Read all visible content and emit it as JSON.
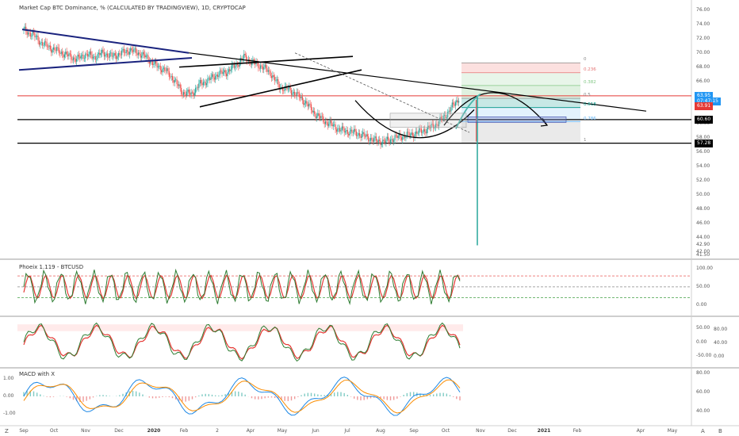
{
  "chart_data": [
    {
      "type": "candlestick",
      "title": "Market Cap BTC Dominance, % (CALCULATED BY TRADINGVIEW), 1D, CRYPTOCAP",
      "ylim": [
        41.5,
        77.0
      ],
      "y_ticks": [
        "76.00",
        "74.00",
        "72.00",
        "70.00",
        "68.00",
        "66.00",
        "64.00",
        "62.00",
        "60.00",
        "58.00",
        "56.00",
        "54.00",
        "52.00",
        "50.00",
        "48.00",
        "46.00",
        "44.00",
        "42.00",
        "41.50"
      ],
      "y_tick_values": [
        76,
        74,
        72,
        70,
        68,
        66,
        64,
        62,
        60,
        58,
        56,
        54,
        52,
        50,
        48,
        46,
        44,
        42,
        41.5
      ],
      "price_tags": [
        {
          "label": "63.95",
          "value": 63.95,
          "color": "#2196f3"
        },
        {
          "label": "07:47:15",
          "value": 63.2,
          "color": "#2196f3"
        },
        {
          "label": "63.91",
          "value": 62.5,
          "color": "#e53935"
        },
        {
          "label": "60.60",
          "value": 60.6,
          "color": "#000000"
        },
        {
          "label": "57.28",
          "value": 57.28,
          "color": "#000000"
        }
      ],
      "horizontal_lines": [
        63.95,
        60.6,
        57.28
      ],
      "fib_levels": [
        {
          "label": "0",
          "value": 68.6,
          "color": "#888888"
        },
        {
          "label": "0.236",
          "value": 67.2,
          "color": "#e57373"
        },
        {
          "label": "0.382",
          "value": 65.4,
          "color": "#81c784"
        },
        {
          "label": "0.5",
          "value": 63.6,
          "color": "#888888"
        },
        {
          "label": "0.618",
          "value": 62.3,
          "color": "#009688"
        },
        {
          "label": "0.786",
          "value": 60.3,
          "color": "#64b5f6"
        },
        {
          "label": "1",
          "value": 57.28,
          "color": "#888888"
        }
      ],
      "series_points": [
        [
          0,
          73.2
        ],
        [
          8,
          72.6
        ],
        [
          16,
          71.4
        ],
        [
          24,
          70.7
        ],
        [
          32,
          70.2
        ],
        [
          40,
          69.6
        ],
        [
          48,
          69.1
        ],
        [
          56,
          69.8
        ],
        [
          64,
          69.4
        ],
        [
          72,
          70.0
        ],
        [
          80,
          69.5
        ],
        [
          88,
          69.9
        ],
        [
          96,
          70.4
        ],
        [
          104,
          70.0
        ],
        [
          112,
          69.3
        ],
        [
          120,
          68.2
        ],
        [
          128,
          67.6
        ],
        [
          136,
          66.3
        ],
        [
          144,
          64.4
        ],
        [
          152,
          64.2
        ],
        [
          160,
          65.6
        ],
        [
          168,
          66.2
        ],
        [
          176,
          67.0
        ],
        [
          184,
          67.3
        ],
        [
          192,
          68.2
        ],
        [
          200,
          69.4
        ],
        [
          208,
          68.6
        ],
        [
          216,
          68.1
        ],
        [
          224,
          67.2
        ],
        [
          232,
          65.2
        ],
        [
          240,
          64.9
        ],
        [
          248,
          64.1
        ],
        [
          256,
          63.0
        ],
        [
          264,
          61.5
        ],
        [
          272,
          60.5
        ],
        [
          280,
          59.8
        ],
        [
          288,
          59.1
        ],
        [
          296,
          58.9
        ],
        [
          304,
          58.6
        ],
        [
          312,
          58.1
        ],
        [
          320,
          57.6
        ],
        [
          328,
          57.5
        ],
        [
          336,
          58.0
        ],
        [
          344,
          58.3
        ],
        [
          352,
          58.5
        ],
        [
          360,
          58.9
        ],
        [
          368,
          59.4
        ],
        [
          376,
          60.1
        ],
        [
          384,
          61.4
        ],
        [
          392,
          63.0
        ],
        [
          396,
          63.91
        ]
      ],
      "spike": {
        "x": 396,
        "low": 42.9,
        "high": 63.95
      },
      "x_ticks": [
        "Sep",
        "Oct",
        "Nov",
        "Dec",
        "2020",
        "Feb",
        "2",
        "Apr",
        "May",
        "Jun",
        "Jul",
        "Aug",
        "Sep",
        "Oct",
        "Nov",
        "Dec",
        "2021",
        "Feb",
        "Apr",
        "May"
      ]
    },
    {
      "type": "line",
      "title": "Phoeix 1.119 - BTCUSD",
      "ylim": [
        -20,
        115
      ],
      "y_ticks": [
        "100.00",
        "50.00",
        "0.00"
      ],
      "y_tick_values": [
        100,
        50,
        0
      ],
      "levels": [
        {
          "value": 80,
          "color": "#e53935"
        },
        {
          "value": 50,
          "color": "#888888"
        },
        {
          "value": 20,
          "color": "#43a047"
        }
      ]
    },
    {
      "type": "line",
      "title": "",
      "ylim": [
        -80,
        80
      ],
      "y_ticks": [
        "50.00",
        "0.00",
        "-50.00"
      ],
      "y_tick_values": [
        50,
        0,
        -50
      ],
      "right_axis_ticks": [
        "80.00",
        "40.00",
        "0.00"
      ]
    },
    {
      "type": "line",
      "title": "MACD with X",
      "ylim": [
        -1.4,
        1.4
      ],
      "y_ticks": [
        "1.00",
        "0.00",
        "-1.00"
      ],
      "y_tick_values": [
        1,
        0,
        -1
      ],
      "right_axis_ticks": [
        "80.00",
        "60.00",
        "40.00"
      ]
    }
  ],
  "bottom_bar": {
    "left": "Z",
    "right_labels": [
      "A",
      "B"
    ]
  }
}
